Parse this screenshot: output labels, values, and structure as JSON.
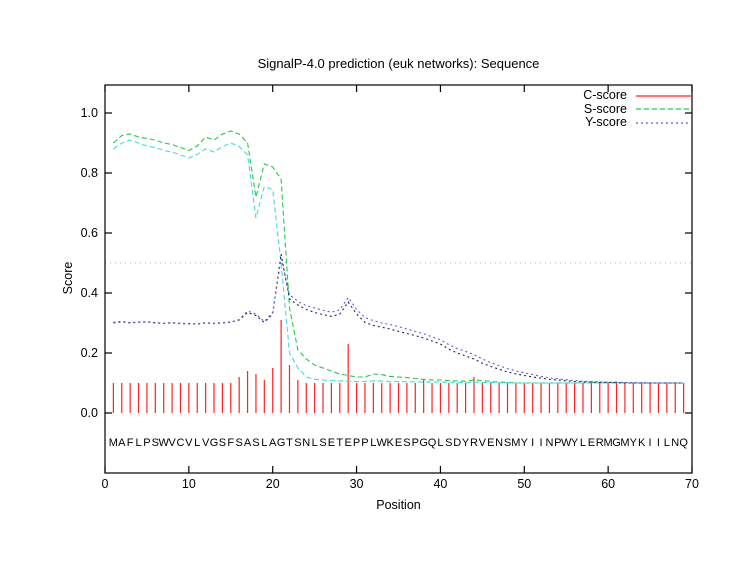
{
  "window": {
    "background": "#ffffff"
  },
  "chart_data": {
    "type": "line",
    "title": "SignalP-4.0 prediction (euk networks): Sequence",
    "xlabel": "Position",
    "ylabel": "Score",
    "xlim": [
      0,
      70
    ],
    "ylim": [
      0.0,
      1.093
    ],
    "x_ticks": [
      0,
      10,
      20,
      30,
      40,
      50,
      60,
      70
    ],
    "y_ticks": [
      "0.0",
      "0.2",
      "0.4",
      "0.6",
      "0.8",
      "1.0"
    ],
    "grid": false,
    "threshold_line": 0.5,
    "threshold_color": "#b0b0b0",
    "legend_position": "top-right-inside",
    "legend": [
      {
        "label": "C-score",
        "color": "#ff2222",
        "dash": "solid"
      },
      {
        "label": "S-score",
        "color": "#22cc44",
        "dash": "dashed"
      },
      {
        "label": "Y-score",
        "color": "#5a5ad8",
        "dash": "dotted"
      }
    ],
    "sequence": "MAFLPSWVCVLVGSFSASLAGTSNLSETEPPLWKESPGQLSDYRVENSMYIINPWYLERMGMYKIILNQ",
    "series": [
      {
        "name": "C-score",
        "style": "impulses",
        "color": "#ff2222",
        "values": [
          0.1,
          0.1,
          0.1,
          0.1,
          0.1,
          0.1,
          0.1,
          0.1,
          0.1,
          0.1,
          0.1,
          0.1,
          0.1,
          0.1,
          0.1,
          0.12,
          0.14,
          0.13,
          0.11,
          0.15,
          0.31,
          0.16,
          0.11,
          0.1,
          0.1,
          0.1,
          0.1,
          0.1,
          0.23,
          0.1,
          0.1,
          0.1,
          0.1,
          0.1,
          0.1,
          0.1,
          0.1,
          0.11,
          0.1,
          0.1,
          0.1,
          0.1,
          0.1,
          0.12,
          0.1,
          0.1,
          0.1,
          0.1,
          0.1,
          0.1,
          0.1,
          0.1,
          0.1,
          0.1,
          0.1,
          0.1,
          0.1,
          0.1,
          0.1,
          0.1,
          0.1,
          0.1,
          0.1,
          0.1,
          0.1,
          0.1,
          0.1,
          0.1,
          0.1
        ]
      },
      {
        "name": "S-score",
        "style": "dashed",
        "color": "#22cc44",
        "values": [
          0.9,
          0.925,
          0.93,
          0.92,
          0.915,
          0.91,
          0.9,
          0.895,
          0.885,
          0.875,
          0.89,
          0.92,
          0.91,
          0.93,
          0.94,
          0.93,
          0.9,
          0.72,
          0.83,
          0.82,
          0.78,
          0.35,
          0.21,
          0.18,
          0.16,
          0.15,
          0.14,
          0.13,
          0.125,
          0.12,
          0.12,
          0.13,
          0.128,
          0.122,
          0.12,
          0.118,
          0.115,
          0.112,
          0.11,
          0.11,
          0.108,
          0.107,
          0.106,
          0.11,
          0.108,
          0.105,
          0.103,
          0.102,
          0.1,
          0.1,
          0.1,
          0.1,
          0.1,
          0.1,
          0.1,
          0.1,
          0.1,
          0.102,
          0.1,
          0.1,
          0.103,
          0.1,
          0.1,
          0.1,
          0.1,
          0.1,
          0.1,
          0.1,
          0.1
        ]
      },
      {
        "name": "S-score cyan trace",
        "style": "dashed",
        "color": "#44dddd",
        "values": [
          0.88,
          0.9,
          0.91,
          0.9,
          0.89,
          0.885,
          0.875,
          0.87,
          0.86,
          0.85,
          0.862,
          0.88,
          0.87,
          0.888,
          0.9,
          0.888,
          0.86,
          0.65,
          0.755,
          0.745,
          0.5,
          0.2,
          0.15,
          0.12,
          0.112,
          0.11,
          0.108,
          0.107,
          0.106,
          0.105,
          0.105,
          0.107,
          0.106,
          0.105,
          0.105,
          0.104,
          0.104,
          0.103,
          0.103,
          0.103,
          0.103,
          0.102,
          0.102,
          0.103,
          0.102,
          0.102,
          0.101,
          0.101,
          0.1,
          0.1,
          0.1,
          0.1,
          0.1,
          0.1,
          0.1,
          0.1,
          0.1,
          0.1,
          0.1,
          0.1,
          0.1,
          0.1,
          0.1,
          0.1,
          0.1,
          0.1,
          0.1,
          0.1,
          0.1
        ]
      },
      {
        "name": "Y-score dark trace",
        "style": "dotted",
        "color": "#262650",
        "values": [
          0.302,
          0.305,
          0.301,
          0.303,
          0.304,
          0.301,
          0.299,
          0.301,
          0.299,
          0.298,
          0.297,
          0.301,
          0.299,
          0.301,
          0.303,
          0.31,
          0.335,
          0.325,
          0.302,
          0.33,
          0.53,
          0.38,
          0.36,
          0.345,
          0.335,
          0.328,
          0.322,
          0.33,
          0.37,
          0.33,
          0.302,
          0.292,
          0.286,
          0.28,
          0.272,
          0.265,
          0.258,
          0.25,
          0.24,
          0.23,
          0.213,
          0.2,
          0.19,
          0.18,
          0.166,
          0.155,
          0.146,
          0.137,
          0.13,
          0.125,
          0.12,
          0.116,
          0.112,
          0.11,
          0.107,
          0.105,
          0.104,
          0.103,
          0.102,
          0.102,
          0.101,
          0.1,
          0.1,
          0.1,
          0.1,
          0.1,
          0.1,
          0.1,
          0.1
        ]
      },
      {
        "name": "Y-score",
        "style": "dotted",
        "color": "#5a5ad8",
        "values": [
          0.3,
          0.303,
          0.3,
          0.302,
          0.303,
          0.3,
          0.298,
          0.3,
          0.298,
          0.297,
          0.296,
          0.3,
          0.298,
          0.3,
          0.302,
          0.312,
          0.34,
          0.33,
          0.305,
          0.335,
          0.515,
          0.395,
          0.372,
          0.358,
          0.35,
          0.342,
          0.336,
          0.344,
          0.385,
          0.345,
          0.318,
          0.308,
          0.3,
          0.295,
          0.288,
          0.28,
          0.272,
          0.264,
          0.254,
          0.244,
          0.228,
          0.215,
          0.205,
          0.195,
          0.18,
          0.168,
          0.158,
          0.148,
          0.14,
          0.134,
          0.128,
          0.122,
          0.117,
          0.114,
          0.111,
          0.108,
          0.106,
          0.105,
          0.104,
          0.103,
          0.102,
          0.102,
          0.101,
          0.101,
          0.1,
          0.1,
          0.1,
          0.1,
          0.1
        ]
      }
    ]
  }
}
